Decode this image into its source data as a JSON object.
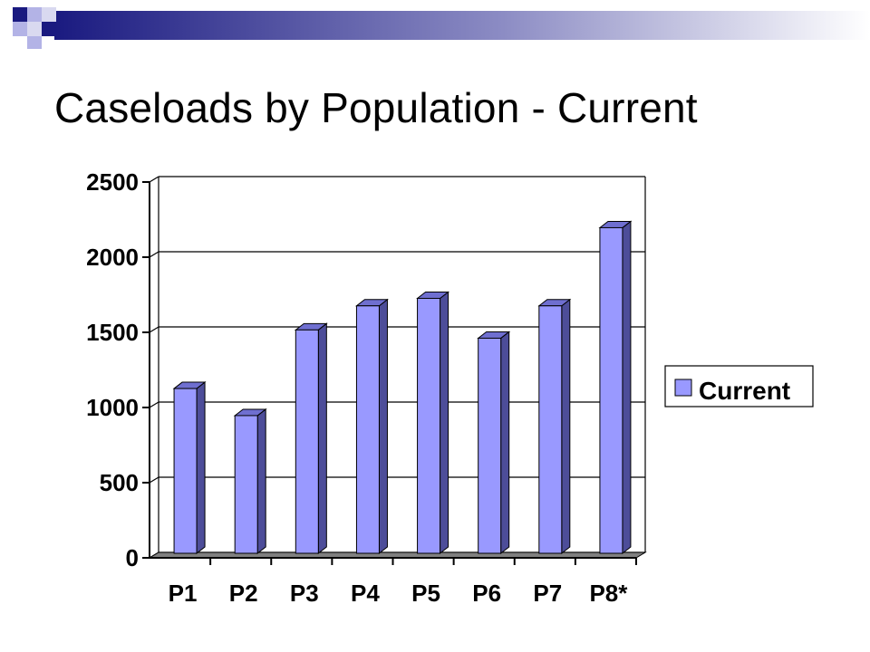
{
  "slide": {
    "title": "Caseloads by Population - Current"
  },
  "colors": {
    "bar_front": "#9999ff",
    "bar_side": "#4d4d99",
    "bar_top": "#6f6fd0",
    "floor": "#808080",
    "grid": "#000000",
    "accent_navy": "#1a1a80",
    "accent_light": "#b3b3e6"
  },
  "chart_data": {
    "type": "bar",
    "title": "",
    "xlabel": "",
    "ylabel": "",
    "categories": [
      "P1",
      "P2",
      "P3",
      "P4",
      "P5",
      "P6",
      "P7",
      "P8*"
    ],
    "series": [
      {
        "name": "Current",
        "values": [
          1090,
          910,
          1480,
          1640,
          1690,
          1425,
          1640,
          2160
        ]
      }
    ],
    "ylim": [
      0,
      2500
    ],
    "yticks": [
      0,
      500,
      1000,
      1500,
      2000,
      2500
    ],
    "grid": true,
    "legend": "right",
    "style": "3d-column"
  }
}
